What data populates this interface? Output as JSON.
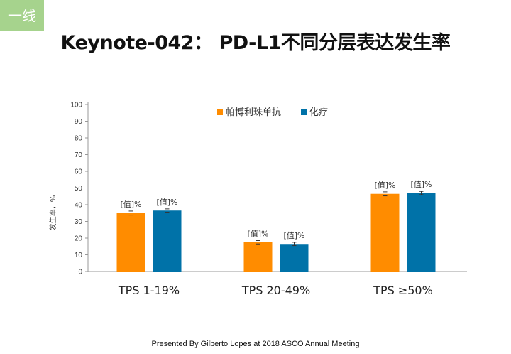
{
  "slide": {
    "tag": "一线",
    "title": "Keynote-042： PD-L1不同分层表达发生率",
    "footer": "Presented By Gilberto Lopes at 2018 ASCO Annual Meeting"
  },
  "chart_data": {
    "type": "bar",
    "categories": [
      "TPS 1-19%",
      "TPS 20-49%",
      "TPS ≥50%"
    ],
    "series": [
      {
        "name": "帕博利珠单抗",
        "color": "#ff8c00",
        "values": [
          35,
          17.5,
          46.5
        ],
        "errors": [
          1.2,
          1.0,
          1.2
        ],
        "labels": [
          "[值]%",
          "[值]%",
          "[值]%"
        ]
      },
      {
        "name": "化疗",
        "color": "#0072a8",
        "values": [
          36.5,
          16.5,
          47
        ],
        "errors": [
          1.0,
          1.0,
          1.0
        ],
        "labels": [
          "[值]%",
          "[值]%",
          "[值]%"
        ]
      }
    ],
    "ylabel": "发生率，%",
    "ylim": [
      0,
      100
    ],
    "yticks": [
      0,
      10,
      20,
      30,
      40,
      50,
      60,
      70,
      80,
      90,
      100
    ],
    "legend": "top-center",
    "grid": false
  }
}
